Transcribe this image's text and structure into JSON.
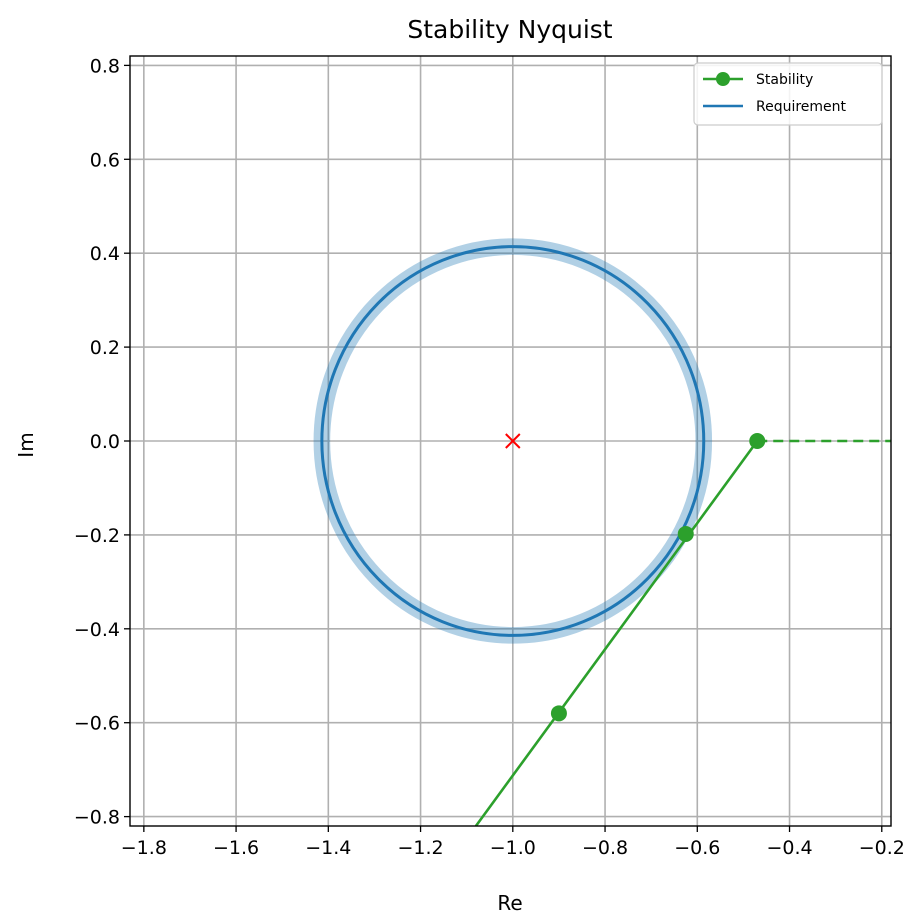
{
  "chart_data": {
    "type": "line",
    "title": "Stability Nyquist",
    "xlabel": "Re",
    "ylabel": "Im",
    "xlim": [
      -1.83,
      -0.18
    ],
    "ylim": [
      -0.82,
      0.82
    ],
    "x_ticks": [
      -1.8,
      -1.6,
      -1.4,
      -1.2,
      -1.0,
      -0.8,
      -0.6,
      -0.4,
      -0.2
    ],
    "x_tick_labels": [
      "−1.8",
      "−1.6",
      "−1.4",
      "−1.2",
      "−1.0",
      "−0.8",
      "−0.6",
      "−0.4",
      "−0.2"
    ],
    "y_ticks": [
      -0.8,
      -0.6,
      -0.4,
      -0.2,
      0.0,
      0.2,
      0.4,
      0.6,
      0.8
    ],
    "y_tick_labels": [
      "−0.8",
      "−0.6",
      "−0.4",
      "−0.2",
      "0.0",
      "0.2",
      "0.4",
      "0.6",
      "0.8"
    ],
    "grid": true,
    "legend_position": "top-right",
    "series": [
      {
        "name": "Stability",
        "color": "#2ca02c",
        "marker": "circle",
        "points": [
          {
            "x": -0.47,
            "y": 0.0
          },
          {
            "x": -0.625,
            "y": -0.198
          },
          {
            "x": -0.9,
            "y": -0.58
          }
        ],
        "solid_line": [
          {
            "x": -0.47,
            "y": 0.0
          },
          {
            "x": -1.08,
            "y": -0.82
          }
        ],
        "dashed_extension": [
          {
            "x": -0.47,
            "y": 0.0
          },
          {
            "x": -0.18,
            "y": 0.0
          }
        ]
      },
      {
        "name": "Requirement",
        "color": "#1f77b4",
        "shape": "circle",
        "center": {
          "x": -1.0,
          "y": 0.0
        },
        "radius": 0.414,
        "band_halfwidth": 0.018
      }
    ],
    "annotations": [
      {
        "type": "critical-point",
        "symbol": "×",
        "x": -1.0,
        "y": 0.0,
        "color": "#ff0000"
      }
    ]
  }
}
